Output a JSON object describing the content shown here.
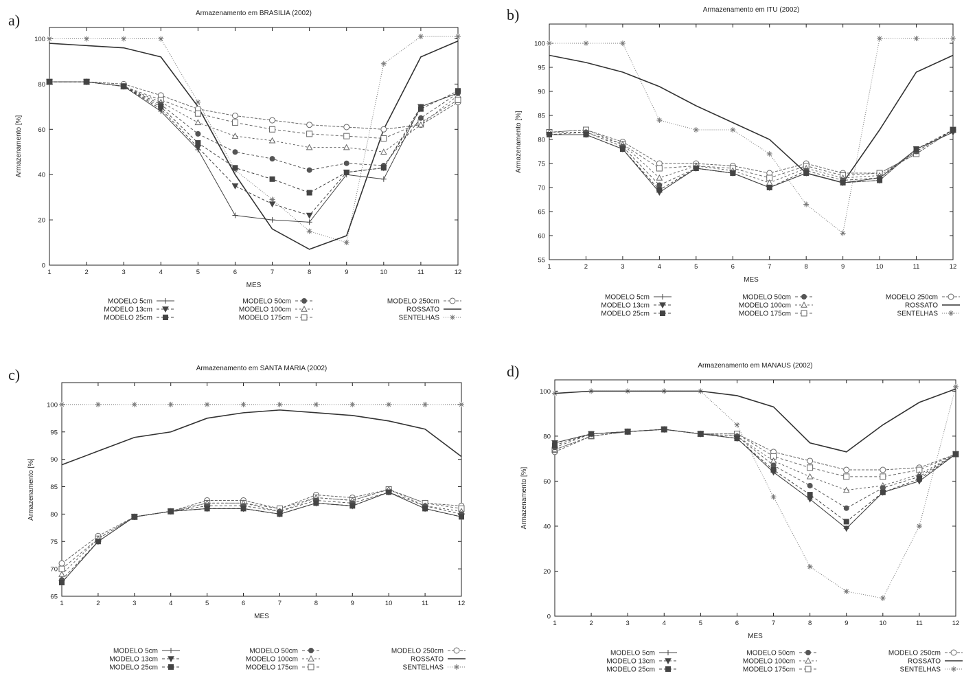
{
  "legend_order": [
    "m5",
    "m13",
    "m25",
    "m50",
    "m100",
    "m175",
    "m250",
    "rossato",
    "sentelhas"
  ],
  "series_styles": {
    "m5": {
      "color": "#444444",
      "dash": "",
      "marker": "plus",
      "width": 1
    },
    "m13": {
      "color": "#444444",
      "dash": "4,3",
      "marker": "tri-down",
      "width": 1
    },
    "m25": {
      "color": "#444444",
      "dash": "4,3",
      "marker": "square-f",
      "width": 1
    },
    "m50": {
      "color": "#555555",
      "dash": "4,3",
      "marker": "circle-f",
      "width": 1
    },
    "m100": {
      "color": "#666666",
      "dash": "3,3",
      "marker": "tri-up",
      "width": 1
    },
    "m175": {
      "color": "#666666",
      "dash": "4,3",
      "marker": "square-o",
      "width": 1
    },
    "m250": {
      "color": "#666666",
      "dash": "4,2",
      "marker": "circle-o",
      "width": 1
    },
    "rossato": {
      "color": "#333333",
      "dash": "",
      "marker": "none",
      "width": 1.6
    },
    "sentelhas": {
      "color": "#777777",
      "dash": "1,2",
      "marker": "star",
      "width": 1
    }
  },
  "chart_data": [
    {
      "id": "a",
      "panel_label": "a)",
      "type": "line",
      "title": "Armazenamento em BRASILIA (2002)",
      "xlabel": "MES",
      "ylabel": "Armazenamento [%]",
      "x": [
        1,
        2,
        3,
        4,
        5,
        6,
        7,
        8,
        9,
        10,
        11,
        12
      ],
      "xticks": [
        "1",
        "2",
        "3",
        "4",
        "5",
        "6",
        "7",
        "8",
        "9",
        "10",
        "11",
        "12"
      ],
      "ylim": [
        0,
        105
      ],
      "yticks": [
        0,
        20,
        40,
        60,
        80,
        100
      ],
      "yticks_labels": [
        "0",
        "20",
        "40",
        "60",
        "80",
        "100"
      ],
      "grid": false,
      "series": [
        {
          "key": "m5",
          "name": "MODELO 5cm",
          "values": [
            81,
            81,
            79,
            68,
            51,
            22,
            20,
            19,
            40,
            38,
            70,
            76
          ]
        },
        {
          "key": "m13",
          "name": "MODELO 13cm",
          "values": [
            81,
            81,
            79,
            69,
            52,
            35,
            27,
            22,
            41,
            43,
            70,
            76
          ]
        },
        {
          "key": "m25",
          "name": "MODELO 25cm",
          "values": [
            81,
            81,
            79,
            70,
            54,
            43,
            38,
            32,
            41,
            43,
            69,
            77
          ]
        },
        {
          "key": "m50",
          "name": "MODELO 50cm",
          "values": [
            81,
            81,
            79,
            71,
            58,
            50,
            47,
            42,
            45,
            44,
            65,
            76
          ]
        },
        {
          "key": "m100",
          "name": "MODELO 100cm",
          "values": [
            81,
            81,
            79,
            72,
            63,
            57,
            55,
            52,
            52,
            50,
            62,
            75
          ]
        },
        {
          "key": "m175",
          "name": "MODELO 175cm",
          "values": [
            81,
            81,
            79,
            73,
            67,
            63,
            60,
            58,
            57,
            56,
            63,
            73
          ]
        },
        {
          "key": "m250",
          "name": "MODELO 250cm",
          "values": [
            81,
            81,
            80,
            75,
            69,
            66,
            64,
            62,
            61,
            60,
            62,
            72
          ]
        },
        {
          "key": "rossato",
          "name": "ROSSATO",
          "values": [
            98,
            97,
            96,
            92,
            70,
            40,
            16,
            7,
            13,
            60,
            92,
            99
          ]
        },
        {
          "key": "sentelhas",
          "name": "SENTELHAS",
          "values": [
            100,
            100,
            100,
            100,
            72,
            42,
            29,
            15,
            10,
            89,
            101,
            101
          ]
        }
      ]
    },
    {
      "id": "b",
      "panel_label": "b)",
      "type": "line",
      "title": "Armazenamento em ITU (2002)",
      "xlabel": "MES",
      "ylabel": "Armazenamento [%]",
      "x": [
        1,
        2,
        3,
        4,
        5,
        6,
        7,
        8,
        9,
        10,
        11,
        12
      ],
      "xticks": [
        "1",
        "2",
        "3",
        "4",
        "5",
        "6",
        "7",
        "8",
        "9",
        "10",
        "11",
        "12"
      ],
      "ylim": [
        55,
        104
      ],
      "yticks": [
        55,
        60,
        65,
        70,
        75,
        80,
        85,
        90,
        95,
        100
      ],
      "yticks_labels": [
        "55",
        "60",
        "65",
        "70",
        "75",
        "80",
        "85",
        "90",
        "95",
        "100"
      ],
      "grid": false,
      "series": [
        {
          "key": "m5",
          "name": "MODELO 5cm",
          "values": [
            81,
            81,
            78,
            69,
            74,
            73,
            70,
            73,
            71,
            72,
            78,
            81.5
          ]
        },
        {
          "key": "m13",
          "name": "MODELO 13cm",
          "values": [
            81,
            81,
            78,
            69,
            74,
            73,
            70,
            73,
            71,
            71.5,
            78,
            81.5
          ]
        },
        {
          "key": "m25",
          "name": "MODELO 25cm",
          "values": [
            81,
            81,
            78,
            69.5,
            74,
            73,
            70,
            73,
            71,
            71.5,
            78,
            82
          ]
        },
        {
          "key": "m50",
          "name": "MODELO 50cm",
          "values": [
            81,
            81.5,
            78.5,
            70.5,
            74,
            73,
            70,
            73.5,
            71.5,
            72,
            77.5,
            82
          ]
        },
        {
          "key": "m100",
          "name": "MODELO 100cm",
          "values": [
            81.5,
            81.5,
            79,
            72,
            74.5,
            73.5,
            71,
            74,
            72,
            72.5,
            77.5,
            82
          ]
        },
        {
          "key": "m175",
          "name": "MODELO 175cm",
          "values": [
            81.5,
            82,
            79,
            74,
            74.5,
            74,
            72,
            74.5,
            72.5,
            73,
            77,
            82
          ]
        },
        {
          "key": "m250",
          "name": "MODELO 250cm",
          "values": [
            81.5,
            82,
            79.5,
            75,
            75,
            74.5,
            73,
            75,
            73,
            73,
            77,
            82
          ]
        },
        {
          "key": "rossato",
          "name": "ROSSATO",
          "values": [
            97.5,
            96,
            94,
            91,
            87,
            83.5,
            80,
            73,
            71,
            82,
            94,
            97.5
          ]
        },
        {
          "key": "sentelhas",
          "name": "SENTELHAS",
          "values": [
            100,
            100,
            100,
            84,
            82,
            82,
            77,
            66.5,
            60.5,
            101,
            101,
            101
          ]
        }
      ]
    },
    {
      "id": "c",
      "panel_label": "c)",
      "type": "line",
      "title": "Armazenamento em SANTA MARIA (2002)",
      "xlabel": "MES",
      "ylabel": "Armazenamento [%]",
      "x": [
        1,
        2,
        3,
        4,
        5,
        6,
        7,
        8,
        9,
        10,
        11,
        12
      ],
      "xticks": [
        "1",
        "2",
        "3",
        "4",
        "5",
        "6",
        "7",
        "8",
        "9",
        "10",
        "11",
        "12"
      ],
      "ylim": [
        65,
        104
      ],
      "yticks": [
        65,
        70,
        75,
        80,
        85,
        90,
        95,
        100
      ],
      "yticks_labels": [
        "65",
        "70",
        "75",
        "80",
        "85",
        "90",
        "95",
        "100"
      ],
      "grid": false,
      "series": [
        {
          "key": "m5",
          "name": "MODELO 5cm",
          "values": [
            67.5,
            75,
            79.5,
            80.5,
            81,
            81,
            80,
            82,
            81.5,
            84,
            81,
            79.5
          ]
        },
        {
          "key": "m13",
          "name": "MODELO 13cm",
          "values": [
            67.5,
            75,
            79.5,
            80.5,
            81,
            81,
            80,
            82,
            81.5,
            84,
            81,
            79.5
          ]
        },
        {
          "key": "m25",
          "name": "MODELO 25cm",
          "values": [
            67.5,
            75,
            79.5,
            80.5,
            81,
            81,
            80,
            82,
            81.5,
            84,
            81,
            79.5
          ]
        },
        {
          "key": "m50",
          "name": "MODELO 50cm",
          "values": [
            68,
            75,
            79.5,
            80.5,
            81.5,
            81.5,
            80.5,
            82.5,
            82,
            84,
            81.5,
            80
          ]
        },
        {
          "key": "m100",
          "name": "MODELO 100cm",
          "values": [
            69,
            75.5,
            79.5,
            80.5,
            82,
            82,
            80.5,
            83,
            82.5,
            84.5,
            81.5,
            80.5
          ]
        },
        {
          "key": "m175",
          "name": "MODELO 175cm",
          "values": [
            70,
            75.5,
            79.5,
            80.5,
            82,
            82,
            81,
            83,
            82.5,
            84.5,
            82,
            81
          ]
        },
        {
          "key": "m250",
          "name": "MODELO 250cm",
          "values": [
            71,
            76,
            79.5,
            80.5,
            82.5,
            82.5,
            81,
            83.5,
            83,
            84.5,
            82,
            81.5
          ]
        },
        {
          "key": "rossato",
          "name": "ROSSATO",
          "values": [
            89,
            91.5,
            94,
            95,
            97.5,
            98.5,
            99,
            98.5,
            98,
            97,
            95.5,
            90.5
          ]
        },
        {
          "key": "sentelhas",
          "name": "SENTELHAS",
          "values": [
            100,
            100,
            100,
            100,
            100,
            100,
            100,
            100,
            100,
            100,
            100,
            100
          ]
        }
      ]
    },
    {
      "id": "d",
      "panel_label": "d)",
      "type": "line",
      "title": "Armazenamento em MANAUS (2002)",
      "xlabel": "MES",
      "ylabel": "Armazenamento [%]",
      "x": [
        1,
        2,
        3,
        4,
        5,
        6,
        7,
        8,
        9,
        10,
        11,
        12
      ],
      "xticks": [
        "1",
        "2",
        "3",
        "4",
        "5",
        "6",
        "7",
        "8",
        "9",
        "10",
        "11",
        "12"
      ],
      "ylim": [
        0,
        105
      ],
      "yticks": [
        0,
        20,
        40,
        60,
        80,
        100
      ],
      "yticks_labels": [
        "0",
        "20",
        "40",
        "60",
        "80",
        "100"
      ],
      "grid": false,
      "series": [
        {
          "key": "m5",
          "name": "MODELO 5cm",
          "values": [
            77,
            81,
            82,
            83,
            81,
            79,
            64,
            52,
            39,
            55,
            60,
            72
          ]
        },
        {
          "key": "m13",
          "name": "MODELO 13cm",
          "values": [
            77,
            81,
            82,
            83,
            81,
            79,
            64,
            52,
            39,
            55,
            60,
            72
          ]
        },
        {
          "key": "m25",
          "name": "MODELO 25cm",
          "values": [
            76,
            81,
            82,
            83,
            81,
            79,
            65,
            54,
            42,
            55,
            61,
            72
          ]
        },
        {
          "key": "m50",
          "name": "MODELO 50cm",
          "values": [
            75,
            81,
            82,
            83,
            81,
            80,
            67,
            58,
            48,
            57,
            62,
            72
          ]
        },
        {
          "key": "m100",
          "name": "MODELO 100cm",
          "values": [
            74,
            80,
            82,
            83,
            81,
            80,
            69,
            62,
            56,
            58,
            63,
            72
          ]
        },
        {
          "key": "m175",
          "name": "MODELO 175cm",
          "values": [
            74,
            80,
            82,
            83,
            81,
            81,
            71,
            66,
            62,
            62,
            65,
            72
          ]
        },
        {
          "key": "m250",
          "name": "MODELO 250cm",
          "values": [
            73,
            80,
            82,
            83,
            81,
            81,
            73,
            69,
            65,
            65,
            66,
            72
          ]
        },
        {
          "key": "rossato",
          "name": "ROSSATO",
          "values": [
            99,
            100,
            100,
            100,
            100,
            98,
            93,
            77,
            73,
            85,
            95,
            101
          ]
        },
        {
          "key": "sentelhas",
          "name": "SENTELHAS",
          "values": [
            99,
            100,
            100,
            100,
            100,
            85,
            53,
            22,
            11,
            8,
            40,
            102
          ]
        }
      ]
    }
  ]
}
